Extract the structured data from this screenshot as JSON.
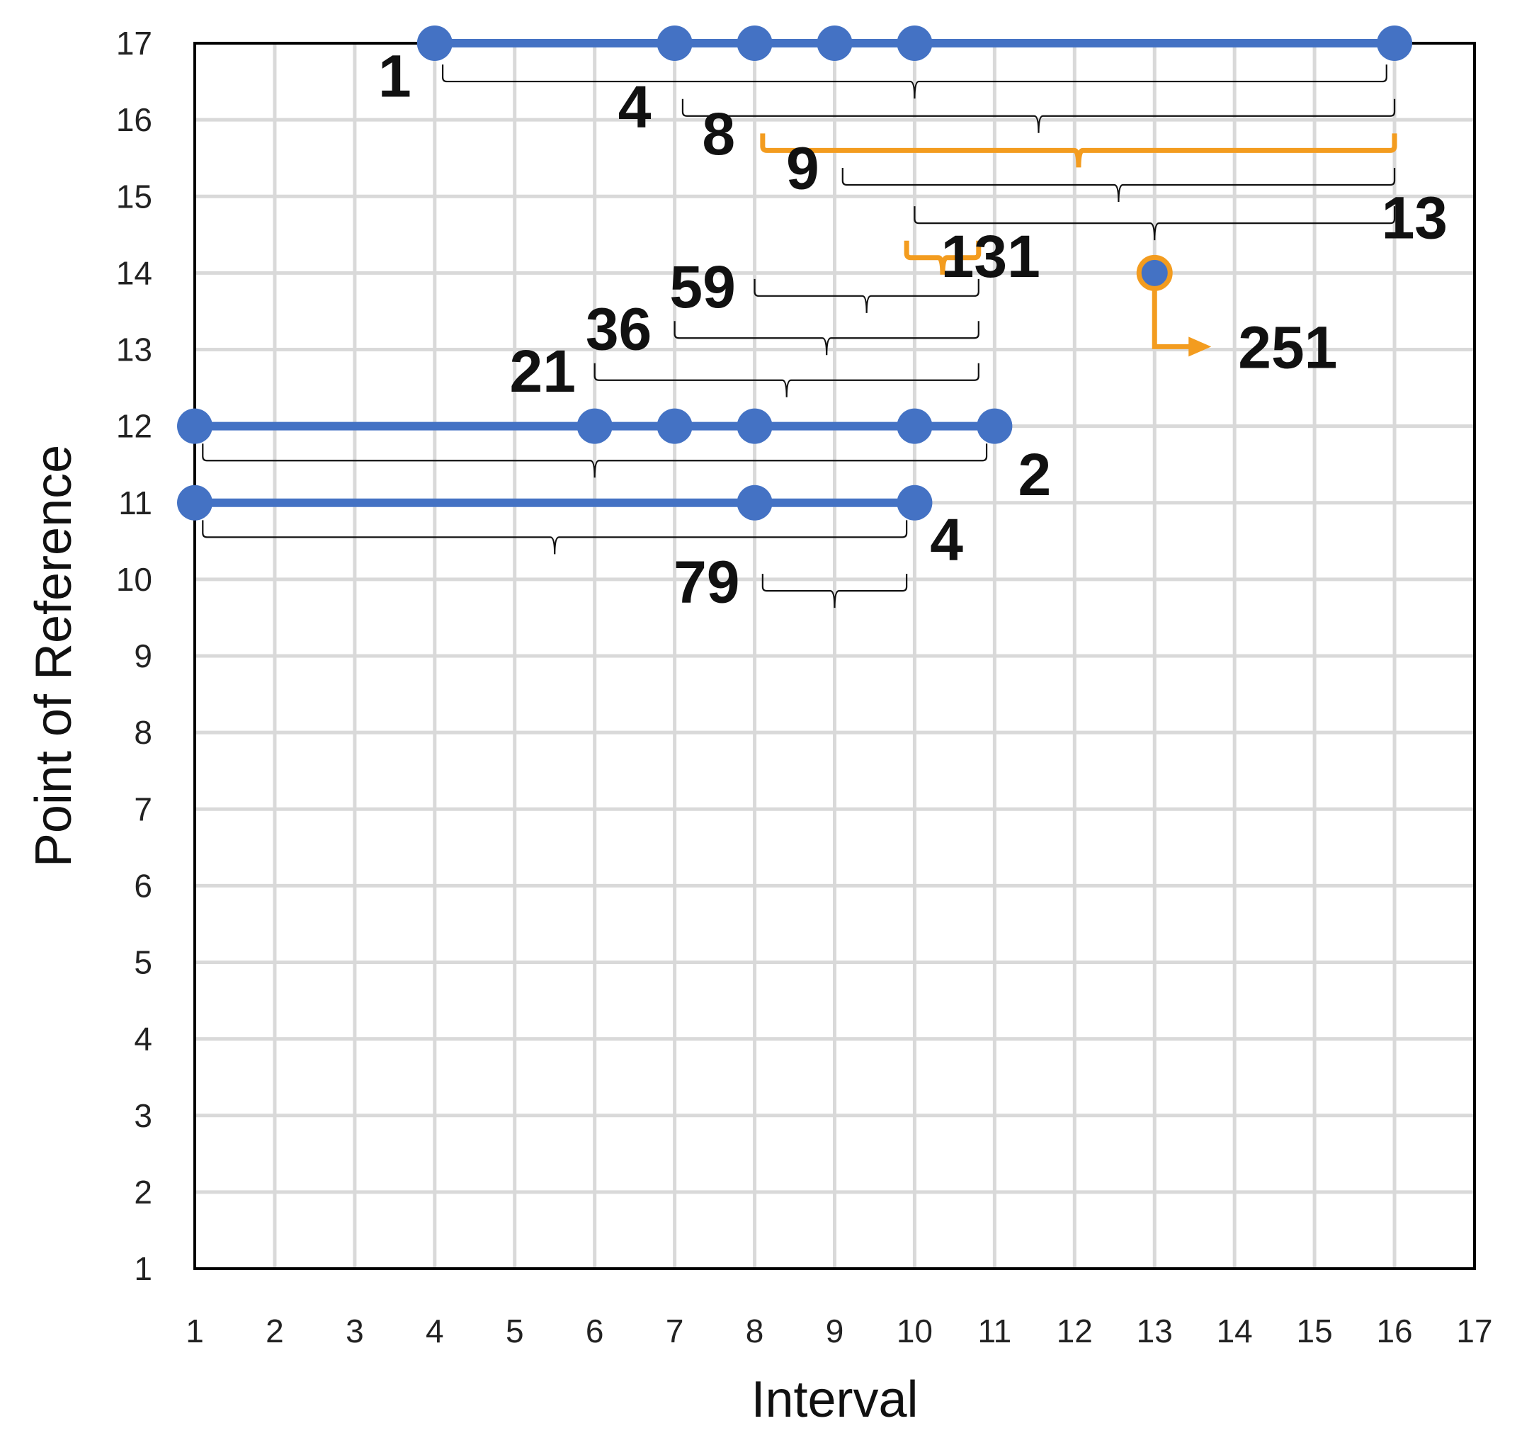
{
  "chart_data": {
    "type": "scatter",
    "xlabel": "Interval",
    "ylabel": "Point of Reference",
    "xlim": [
      1,
      17
    ],
    "ylim": [
      1,
      17
    ],
    "x_ticks": [
      "1",
      "2",
      "3",
      "4",
      "5",
      "6",
      "7",
      "8",
      "9",
      "10",
      "11",
      "12",
      "13",
      "14",
      "15",
      "16",
      "17"
    ],
    "y_ticks": [
      "1",
      "2",
      "3",
      "4",
      "5",
      "6",
      "7",
      "8",
      "9",
      "10",
      "11",
      "12",
      "13",
      "14",
      "15",
      "16",
      "17"
    ],
    "grid": true,
    "colors": {
      "series": "#4472C4",
      "highlight": "#F39C1F",
      "grid": "#D9D9D9",
      "frame": "#000000"
    },
    "series": [
      {
        "y": 17,
        "points": [
          4,
          7,
          8,
          9,
          10,
          16
        ]
      },
      {
        "y": 12,
        "points": [
          1,
          6,
          7,
          8,
          10,
          11
        ]
      },
      {
        "y": 11,
        "points": [
          1,
          8,
          10
        ]
      }
    ],
    "highlight_point": {
      "x": 13,
      "y": 14,
      "label": "251"
    },
    "brackets": [
      {
        "label": "1",
        "x_from": 4.1,
        "x_to": 15.9,
        "y": 16.5,
        "label_x": 3.5,
        "label_y": 16.3,
        "highlight": false
      },
      {
        "label": "4",
        "x_from": 7.1,
        "x_to": 16.0,
        "y": 16.05,
        "label_x": 6.5,
        "label_y": 15.9,
        "highlight": false
      },
      {
        "label": "8",
        "x_from": 8.1,
        "x_to": 16.0,
        "y": 15.6,
        "label_x": 7.55,
        "label_y": 15.55,
        "highlight": true
      },
      {
        "label": "9",
        "x_from": 9.1,
        "x_to": 16.0,
        "y": 15.15,
        "label_x": 8.6,
        "label_y": 15.1,
        "highlight": false
      },
      {
        "label": "13",
        "x_from": 10.0,
        "x_to": 16.0,
        "y": 14.65,
        "label_x": 16.25,
        "label_y": 14.45,
        "highlight": false
      },
      {
        "label": "131",
        "x_from": 9.9,
        "x_to": 10.8,
        "y": 14.2,
        "label_x": 10.95,
        "label_y": 13.95,
        "highlight": true
      },
      {
        "label": "59",
        "x_from": 8.0,
        "x_to": 10.8,
        "y": 13.7,
        "label_x": 7.35,
        "label_y": 13.55,
        "highlight": false
      },
      {
        "label": "36",
        "x_from": 7.0,
        "x_to": 10.8,
        "y": 13.15,
        "label_x": 6.3,
        "label_y": 13.0,
        "highlight": false
      },
      {
        "label": "21",
        "x_from": 6.0,
        "x_to": 10.8,
        "y": 12.6,
        "label_x": 5.35,
        "label_y": 12.45,
        "highlight": false
      },
      {
        "label": "2",
        "x_from": 1.1,
        "x_to": 10.9,
        "y": 11.55,
        "label_x": 11.5,
        "label_y": 11.1,
        "highlight": false
      },
      {
        "label": "4",
        "x_from": 1.1,
        "x_to": 9.9,
        "y": 10.55,
        "label_x": 10.4,
        "label_y": 10.25,
        "highlight": false
      },
      {
        "label": "79",
        "x_from": 8.1,
        "x_to": 9.9,
        "y": 9.85,
        "label_x": 7.4,
        "label_y": 9.7,
        "highlight": false
      }
    ]
  }
}
